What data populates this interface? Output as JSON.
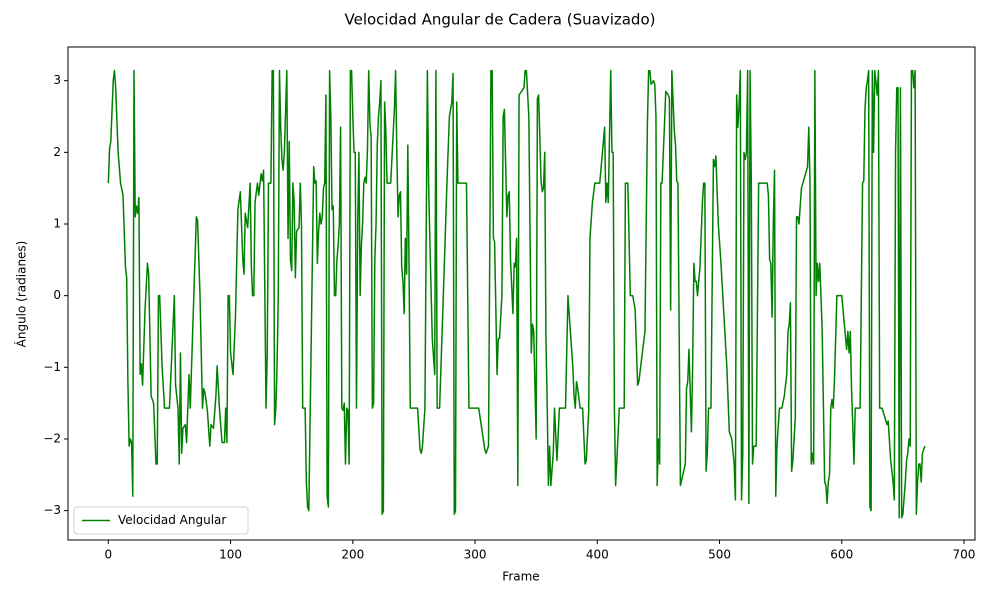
{
  "chart_data": {
    "type": "line",
    "title": "Velocidad Angular de Cadera (Suavizado)",
    "x_label": "Frame",
    "y_label": "Ángulo (radianes)",
    "xlim": [
      -33,
      709
    ],
    "ylim": [
      -3.41,
      3.47
    ],
    "xticks": [
      0,
      100,
      200,
      300,
      400,
      500,
      600,
      700
    ],
    "yticks": [
      {
        "value": -3,
        "label": "−3"
      },
      {
        "value": -2,
        "label": "−2"
      },
      {
        "value": -1,
        "label": "−1"
      },
      0,
      1,
      2,
      3
    ],
    "grid": false,
    "legend": "lower left",
    "x": [
      0,
      1,
      2,
      4,
      5,
      6,
      8,
      10,
      12,
      14,
      15,
      16,
      17,
      18,
      19,
      20,
      21,
      22,
      23,
      24,
      25,
      26,
      27,
      28,
      30,
      32,
      33,
      35,
      37,
      39,
      40,
      41,
      42,
      44,
      46,
      50,
      54,
      55,
      57,
      58,
      59,
      60,
      61,
      63,
      64,
      66,
      67,
      69,
      72,
      73,
      75,
      77,
      78,
      79,
      81,
      83,
      84,
      86,
      88,
      89,
      91,
      93,
      95,
      96,
      97,
      98,
      99,
      100,
      102,
      104,
      106,
      108,
      110,
      111,
      112,
      114,
      116,
      117,
      118,
      119,
      120,
      122,
      123,
      125,
      126,
      127,
      129,
      130,
      131,
      133,
      134,
      135,
      136,
      137,
      138,
      139,
      140,
      141,
      142,
      143,
      144,
      146,
      147,
      148,
      149,
      150,
      151,
      152,
      153,
      154,
      156,
      157,
      158,
      159,
      161,
      162,
      163,
      164,
      168,
      169,
      170,
      171,
      172,
      173,
      174,
      175,
      176,
      177,
      178,
      179,
      180,
      181,
      182,
      183,
      184,
      185,
      186,
      187,
      188,
      189,
      190,
      191,
      192,
      193,
      194,
      195,
      196,
      197,
      198,
      199,
      200,
      201,
      202,
      203,
      204,
      205,
      206,
      207,
      208,
      209,
      210,
      211,
      212,
      213,
      214,
      215,
      216,
      217,
      218,
      219,
      220,
      221,
      222,
      223,
      224,
      225,
      226,
      227,
      228,
      231,
      234,
      235,
      236,
      237,
      238,
      239,
      240,
      241,
      242,
      243,
      244,
      245,
      246,
      247,
      249,
      251,
      253,
      255,
      256,
      257,
      259,
      261,
      262,
      263,
      265,
      267,
      268,
      269,
      271,
      275,
      277,
      279,
      281,
      282,
      283,
      284,
      285,
      286,
      289,
      293,
      295,
      299,
      303,
      308,
      309,
      311,
      313,
      314,
      315,
      316,
      318,
      319,
      320,
      322,
      323,
      324,
      326,
      327,
      328,
      329,
      331,
      332,
      333,
      334,
      335,
      336,
      340,
      341,
      342,
      344,
      346,
      347,
      348,
      350,
      351,
      352,
      354,
      355,
      356,
      357,
      358,
      359,
      360,
      361,
      362,
      364,
      365,
      367,
      369,
      374,
      376,
      378,
      380,
      381,
      382,
      383,
      384,
      386,
      388,
      390,
      391,
      393,
      394,
      396,
      398,
      400,
      402,
      406,
      407,
      408,
      409,
      411,
      412,
      413,
      414,
      415,
      416,
      418,
      420,
      422,
      423,
      425,
      427,
      429,
      431,
      433,
      434,
      439,
      441,
      442,
      443,
      444,
      446,
      447,
      448,
      449,
      450,
      451,
      452,
      453,
      455,
      456,
      458,
      459,
      460,
      461,
      463,
      464,
      465,
      466,
      468,
      472,
      473,
      474,
      475,
      477,
      478,
      479,
      480,
      481,
      482,
      484,
      486,
      487,
      488,
      489,
      490,
      491,
      493,
      495,
      496,
      497,
      499,
      501,
      506,
      508,
      510,
      512,
      513,
      514,
      515,
      516,
      517,
      518,
      519,
      520,
      521,
      522,
      523,
      524,
      525,
      526,
      527,
      528,
      530,
      532,
      534,
      539,
      540,
      541,
      542,
      543,
      544,
      545,
      546,
      547,
      549,
      551,
      553,
      555,
      556,
      557,
      558,
      559,
      560,
      562,
      563,
      564,
      565,
      567,
      572,
      573,
      574,
      575,
      576,
      577,
      578,
      579,
      580,
      581,
      582,
      583,
      584,
      586,
      587,
      588,
      589,
      590,
      591,
      592,
      593,
      594,
      596,
      598,
      600,
      604,
      605,
      606,
      607,
      608,
      609,
      610,
      611,
      613,
      615,
      617,
      618,
      619,
      620,
      621,
      622,
      623,
      624,
      625,
      626,
      627,
      629,
      630,
      631,
      633,
      637,
      638,
      640,
      642,
      643,
      644,
      645,
      646,
      647,
      648,
      649,
      650,
      652,
      653,
      654,
      655,
      656,
      657,
      658,
      659,
      660,
      661,
      662,
      663,
      664,
      665,
      666,
      668
    ],
    "series": [
      {
        "name": "Velocidad Angular",
        "color": "#008000",
        "values": [
          1.57,
          2.05,
          2.15,
          3.0,
          3.14,
          2.9,
          2.0,
          1.57,
          1.4,
          0.4,
          0.25,
          -1.2,
          -2.1,
          -2.0,
          -2.05,
          -2.8,
          3.14,
          1.1,
          1.25,
          1.15,
          1.37,
          -1.1,
          -0.95,
          -1.25,
          -0.2,
          0.45,
          0.3,
          -1.4,
          -1.5,
          -2.35,
          -2.35,
          0,
          0,
          -1.0,
          -1.57,
          -1.57,
          0,
          -1.25,
          -1.57,
          -2.35,
          -0.8,
          -2.2,
          -1.85,
          -1.8,
          -2.05,
          -1.1,
          -1.57,
          -0.5,
          1.1,
          1.05,
          0,
          -1.57,
          -1.3,
          -1.35,
          -1.6,
          -2.1,
          -1.8,
          -1.85,
          -1.4,
          -0.98,
          -1.6,
          -2.05,
          -2.05,
          -1.57,
          -2.05,
          0,
          0,
          -0.8,
          -1.1,
          -0.3,
          1.2,
          1.45,
          0.5,
          0.3,
          1.15,
          0.95,
          1.57,
          0.4,
          0,
          0,
          1.3,
          1.57,
          1.4,
          1.7,
          1.6,
          1.75,
          -1.57,
          -0.8,
          1.57,
          1.57,
          3.14,
          3.14,
          -1.8,
          -1.57,
          -1.0,
          0,
          3.14,
          2.35,
          1.9,
          1.75,
          2.0,
          3.14,
          0.8,
          2.15,
          0.5,
          0.35,
          1.57,
          1.3,
          0.25,
          0.9,
          0.95,
          1.57,
          1.0,
          -1.57,
          -1.57,
          -2.6,
          -2.95,
          -3.0,
          1.8,
          1.57,
          1.6,
          0.45,
          0.9,
          1.15,
          1.0,
          1.1,
          1.5,
          1.57,
          2.8,
          -2.8,
          -2.95,
          3.14,
          2.5,
          1.2,
          1.25,
          0,
          0,
          0.5,
          0.7,
          1.0,
          2.35,
          -1.57,
          -1.6,
          -1.5,
          -2.35,
          -1.57,
          -1.6,
          -2.35,
          3.14,
          3.14,
          2.5,
          2.0,
          2.0,
          -1.57,
          1.0,
          2.0,
          0,
          0.7,
          1.0,
          1.57,
          1.65,
          1.57,
          2.05,
          3.14,
          2.4,
          2.2,
          -1.57,
          -1.5,
          0.5,
          1.0,
          2.1,
          2.5,
          2.7,
          3.0,
          -3.05,
          -3.0,
          2.7,
          2.3,
          1.57,
          1.57,
          2.6,
          3.14,
          2.0,
          1.1,
          1.4,
          1.45,
          0.4,
          0.2,
          -0.25,
          0.8,
          0.3,
          2.1,
          0.4,
          -1.57,
          -1.57,
          -1.57,
          -1.57,
          -2.15,
          -2.2,
          -2.1,
          -1.57,
          3.14,
          1.57,
          0.8,
          -0.6,
          -1.1,
          3.14,
          -1.57,
          -1.57,
          0.5,
          1.57,
          2.5,
          2.7,
          3.1,
          -3.05,
          -3.0,
          2.7,
          1.57,
          1.57,
          1.57,
          -1.57,
          -1.57,
          -1.57,
          -2.15,
          -2.2,
          -2.1,
          3.14,
          3.14,
          0.8,
          0.75,
          -1.1,
          -0.6,
          -0.6,
          0,
          2.5,
          2.6,
          1.1,
          1.4,
          1.45,
          0.5,
          -0.25,
          0.45,
          0.4,
          0.8,
          -2.65,
          2.8,
          2.9,
          3.14,
          3.14,
          2.5,
          -0.8,
          -0.4,
          -0.5,
          -2.0,
          2.75,
          2.8,
          1.6,
          1.45,
          1.5,
          2.0,
          -0.6,
          -1.5,
          -2.65,
          -2.1,
          -2.65,
          -2.2,
          -1.57,
          -2.3,
          -1.57,
          -1.57,
          0,
          -0.5,
          -1.0,
          -1.4,
          -1.57,
          -1.2,
          -1.3,
          -1.57,
          -1.57,
          -2.35,
          -2.3,
          -1.6,
          0.8,
          1.3,
          1.57,
          1.57,
          1.57,
          2.35,
          1.3,
          1.57,
          1.3,
          3.14,
          2.0,
          2.0,
          -1.57,
          -2.65,
          -2.3,
          -1.57,
          -1.57,
          -1.57,
          1.57,
          1.57,
          0,
          0,
          -0.2,
          -1.25,
          -1.2,
          -0.5,
          2.4,
          3.14,
          3.14,
          2.95,
          3.0,
          2.95,
          2.5,
          -2.65,
          -2.0,
          -2.35,
          1.57,
          1.57,
          2.4,
          2.85,
          2.8,
          2.75,
          -0.2,
          3.14,
          2.3,
          2.1,
          1.6,
          1.57,
          -2.65,
          -2.35,
          -1.3,
          -1.2,
          -0.75,
          -1.9,
          -1.0,
          0.45,
          0.2,
          0.2,
          0,
          0.4,
          1.3,
          1.57,
          1.57,
          -2.45,
          -2.2,
          -1.57,
          -1.57,
          1.9,
          1.8,
          1.95,
          1.0,
          0.5,
          -1.0,
          -1.9,
          -2.0,
          -2.35,
          -2.85,
          2.8,
          2.35,
          2.65,
          3.14,
          -2.85,
          -2.2,
          2.0,
          1.9,
          2.0,
          3.14,
          -2.9,
          3.14,
          1.57,
          -2.35,
          -2.1,
          -2.1,
          1.57,
          1.57,
          1.57,
          1.4,
          0.5,
          0.45,
          -0.3,
          1.0,
          1.75,
          -2.8,
          -2.1,
          -1.57,
          -1.57,
          -1.4,
          -1.1,
          -0.5,
          -0.4,
          -0.1,
          -2.45,
          -2.3,
          -1.7,
          1.1,
          1.1,
          1.0,
          1.5,
          1.8,
          2.35,
          1.6,
          -2.35,
          -2.2,
          -2.35,
          3.14,
          0.0,
          0.45,
          0.2,
          0.45,
          0,
          -0.5,
          -2.6,
          -2.65,
          -2.9,
          -2.6,
          -2.5,
          -1.57,
          -1.45,
          -1.57,
          -1.2,
          0,
          0,
          0,
          -0.75,
          -0.5,
          -0.8,
          -0.5,
          -1.3,
          -1.8,
          -2.35,
          -1.57,
          -1.57,
          -1.57,
          1.57,
          1.6,
          2.6,
          2.9,
          3.0,
          3.14,
          -2.95,
          -3.0,
          3.14,
          2.0,
          3.14,
          2.8,
          3.14,
          -1.57,
          -1.57,
          -1.8,
          -1.75,
          -2.3,
          -2.6,
          -2.85,
          2.0,
          2.9,
          2.9,
          -3.1,
          2.9,
          -3.1,
          -3.05,
          -2.6,
          -2.3,
          -2.2,
          -2.0,
          -2.1,
          3.14,
          3.14,
          2.9,
          3.14,
          -3.05,
          -2.6,
          -2.35,
          -2.35,
          -2.6,
          -2.2,
          -2.1
        ]
      }
    ]
  }
}
